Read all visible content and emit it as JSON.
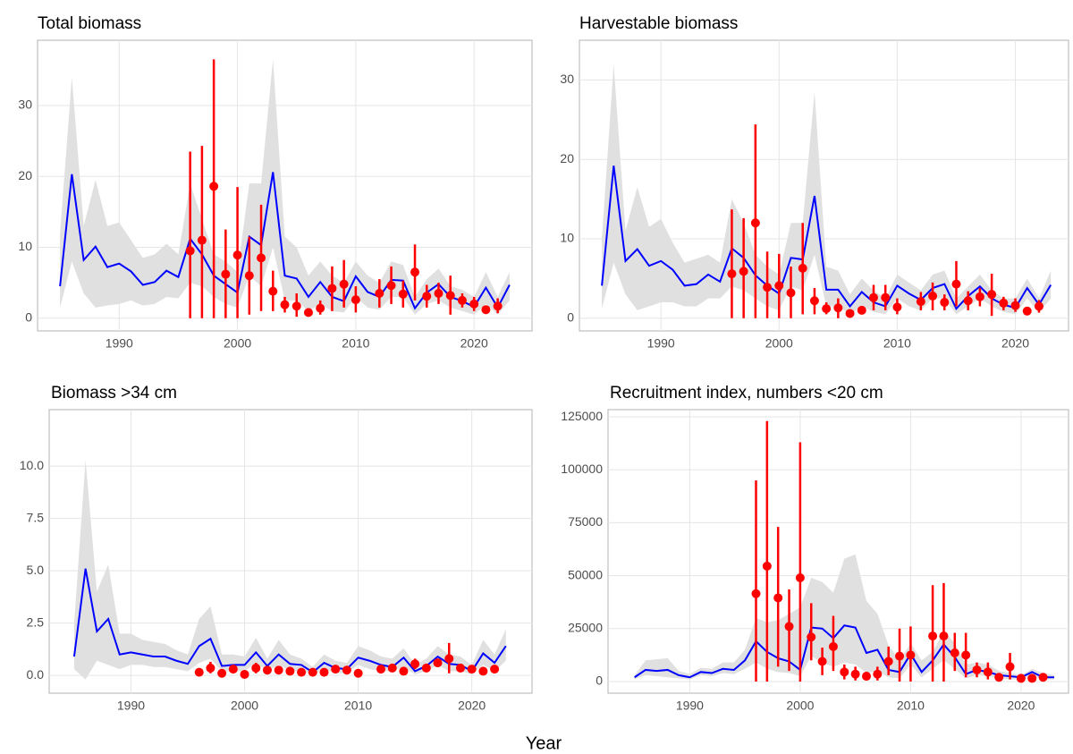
{
  "xlabel": "Year",
  "chart_data": [
    {
      "type": "line",
      "title": "Total biomass",
      "x": [
        1985,
        1986,
        1987,
        1988,
        1989,
        1990,
        1991,
        1992,
        1993,
        1994,
        1995,
        1996,
        1997,
        1998,
        1999,
        2000,
        2001,
        2002,
        2003,
        2004,
        2005,
        2006,
        2007,
        2008,
        2009,
        2010,
        2011,
        2012,
        2013,
        2014,
        2015,
        2016,
        2017,
        2018,
        2019,
        2020,
        2021,
        2022,
        2023
      ],
      "values": [
        4.5,
        20.3,
        8.2,
        10.1,
        7.2,
        7.7,
        6.6,
        4.7,
        5.1,
        6.7,
        5.8,
        11.2,
        9.0,
        6.0,
        4.8,
        3.6,
        11.5,
        10.3,
        20.6,
        6.0,
        5.6,
        3.0,
        5.1,
        3.0,
        2.4,
        5.9,
        3.7,
        3.0,
        5.4,
        5.3,
        1.4,
        3.6,
        4.8,
        3.0,
        2.4,
        1.6,
        4.3,
        1.5,
        4.7
      ],
      "lower": [
        1.5,
        8,
        3.5,
        1.5,
        1.8,
        2,
        2.5,
        1.8,
        2,
        3,
        2.8,
        5,
        4.5,
        3,
        2,
        1.5,
        6,
        4.5,
        10,
        2.5,
        2.5,
        1,
        2,
        1,
        0.8,
        3,
        1.5,
        1.2,
        3,
        3,
        0.5,
        2,
        2.5,
        1.5,
        1,
        0.5,
        2,
        0.5,
        2.5
      ],
      "upper": [
        12,
        34,
        13,
        19.5,
        13,
        13.5,
        11,
        8.5,
        9,
        10.5,
        9,
        19,
        14,
        9,
        8,
        6.5,
        19,
        19,
        36.5,
        11.5,
        10,
        6,
        8,
        6,
        5,
        8,
        6,
        5,
        8,
        7.5,
        3,
        5.5,
        7,
        4.5,
        4,
        3,
        6.5,
        3,
        6.5
      ],
      "color": "#0000ff",
      "band_color": "#e0e0e0",
      "points": {
        "x": [
          1996,
          1997,
          1998,
          1999,
          2000,
          2001,
          2002,
          2003,
          2004,
          2005,
          2006,
          2007,
          2008,
          2009,
          2010,
          2012,
          2013,
          2014,
          2015,
          2016,
          2017,
          2018,
          2019,
          2020,
          2021,
          2022
        ],
        "values": [
          9.5,
          11,
          18.6,
          6.2,
          8.9,
          6,
          8.5,
          3.8,
          1.9,
          1.7,
          0.8,
          1.4,
          4.2,
          4.8,
          2.6,
          3.5,
          4.6,
          3.4,
          6.5,
          3.1,
          3.5,
          3.2,
          2.5,
          2.0,
          1.2,
          1.7
        ],
        "lower": [
          0,
          0,
          0,
          0,
          0,
          0.5,
          1,
          1,
          0.8,
          0.2,
          0.3,
          0.5,
          1,
          1.5,
          0.8,
          1.5,
          2,
          1.5,
          2.5,
          1.5,
          2,
          0.5,
          1.5,
          1,
          0.8,
          0.7
        ],
        "upper": [
          23.5,
          24.3,
          36.5,
          12.5,
          18.5,
          11.5,
          16,
          6.7,
          3,
          3.5,
          1.3,
          2.5,
          7.3,
          8.2,
          4.5,
          5.5,
          7.3,
          5.3,
          10.4,
          4.7,
          5,
          6,
          3.5,
          3,
          1.6,
          2.8
        ],
        "color": "#ff0000"
      },
      "xlim": [
        1983.1,
        2024.9
      ],
      "ylim": [
        -1.8,
        39.2
      ],
      "xticks": [
        1990,
        2000,
        2010,
        2020
      ],
      "yticks": [
        0,
        10,
        20,
        30
      ],
      "grid": true
    },
    {
      "type": "line",
      "title": "Harvestable biomass",
      "x": [
        1985,
        1986,
        1987,
        1988,
        1989,
        1990,
        1991,
        1992,
        1993,
        1994,
        1995,
        1996,
        1997,
        1998,
        1999,
        2000,
        2001,
        2002,
        2003,
        2004,
        2005,
        2006,
        2007,
        2008,
        2009,
        2010,
        2011,
        2012,
        2013,
        2014,
        2015,
        2016,
        2017,
        2018,
        2019,
        2020,
        2021,
        2022,
        2023
      ],
      "values": [
        4.1,
        19.2,
        7.2,
        8.7,
        6.6,
        7.2,
        6.1,
        4.1,
        4.3,
        5.5,
        4.6,
        8.8,
        7.6,
        5.4,
        4.1,
        3.1,
        7.6,
        7.4,
        15.4,
        3.6,
        3.6,
        1.5,
        3.3,
        2.0,
        1.5,
        4.1,
        3.1,
        2.3,
        3.8,
        4.3,
        1.2,
        2.8,
        4.0,
        2.5,
        1.7,
        1.3,
        3.8,
        1.7,
        4.2
      ],
      "lower": [
        1.2,
        7,
        3,
        1,
        1.5,
        2,
        2,
        1.5,
        1.5,
        2.5,
        2.5,
        4,
        3.5,
        2.5,
        1.5,
        1,
        4,
        3.5,
        8,
        1.5,
        1.5,
        0.5,
        1.5,
        0.8,
        0.5,
        2.5,
        1.5,
        1,
        2.5,
        2.5,
        0.5,
        1.5,
        2.5,
        1.5,
        0.8,
        0.5,
        2.5,
        0.7,
        2.5
      ],
      "upper": [
        10,
        32,
        11,
        16.5,
        11.5,
        12.5,
        9.5,
        7,
        7.5,
        8,
        7,
        15,
        12,
        8,
        6.5,
        5.5,
        12,
        12,
        28.5,
        6.5,
        6,
        3,
        5,
        3.5,
        2.5,
        5.5,
        4.5,
        3.5,
        5.5,
        6,
        2.5,
        4,
        5.5,
        3.5,
        2.5,
        2.5,
        5,
        2.5,
        6
      ],
      "color": "#0000ff",
      "band_color": "#e0e0e0",
      "points": {
        "x": [
          1996,
          1997,
          1998,
          1999,
          2000,
          2001,
          2002,
          2003,
          2004,
          2005,
          2006,
          2007,
          2008,
          2009,
          2010,
          2012,
          2013,
          2014,
          2015,
          2016,
          2017,
          2018,
          2019,
          2020,
          2021,
          2022
        ],
        "values": [
          5.6,
          5.9,
          12,
          3.9,
          4.1,
          3.2,
          6.3,
          2.2,
          1.2,
          1.3,
          0.6,
          1.0,
          2.6,
          2.6,
          1.4,
          2.1,
          2.8,
          2.0,
          4.3,
          2.2,
          2.7,
          3.0,
          1.9,
          1.6,
          0.9,
          1.5
        ],
        "lower": [
          0,
          0,
          0,
          0,
          0,
          0,
          0.5,
          0.5,
          0.5,
          0,
          0.2,
          0.5,
          1,
          1,
          0.5,
          1,
          1,
          1,
          1.5,
          1,
          1.5,
          0.3,
          1,
          0.8,
          0.5,
          0.7
        ],
        "upper": [
          13.7,
          12.6,
          24.4,
          8.4,
          8.1,
          6.5,
          12,
          3.8,
          2,
          2.5,
          1,
          1.5,
          4.2,
          4.2,
          2.5,
          3.3,
          4.5,
          3,
          7.2,
          3.4,
          3.8,
          5.6,
          2.7,
          2.5,
          1.3,
          2.3
        ],
        "color": "#ff0000"
      },
      "xlim": [
        1983.1,
        2024.5
      ],
      "ylim": [
        -1.6,
        35
      ],
      "xticks": [
        1990,
        2000,
        2010,
        2020
      ],
      "yticks": [
        0,
        10,
        20,
        30
      ],
      "grid": true
    },
    {
      "type": "line",
      "title": "Biomass >34 cm",
      "x": [
        1985,
        1986,
        1987,
        1988,
        1989,
        1990,
        1991,
        1992,
        1993,
        1994,
        1995,
        1996,
        1997,
        1998,
        1999,
        2000,
        2001,
        2002,
        2003,
        2004,
        2005,
        2006,
        2007,
        2008,
        2009,
        2010,
        2011,
        2012,
        2013,
        2014,
        2015,
        2016,
        2017,
        2018,
        2019,
        2020,
        2021,
        2022,
        2023
      ],
      "values": [
        0.9,
        5.1,
        2.1,
        2.7,
        1.0,
        1.1,
        1.0,
        0.9,
        0.9,
        0.7,
        0.55,
        1.4,
        1.75,
        0.45,
        0.5,
        0.5,
        1.1,
        0.45,
        1.0,
        0.55,
        0.5,
        0.15,
        0.6,
        0.35,
        0.3,
        0.85,
        0.7,
        0.5,
        0.4,
        0.85,
        0.2,
        0.45,
        0.9,
        0.55,
        0.5,
        0.2,
        1.05,
        0.6,
        1.4
      ],
      "lower": [
        0.3,
        -0.2,
        0.7,
        0.5,
        0.3,
        0.5,
        0.5,
        0.4,
        0.4,
        0.3,
        0.2,
        0.6,
        0.8,
        0.2,
        0.2,
        0.2,
        0.6,
        0.2,
        0.5,
        0.2,
        0.2,
        0.05,
        0.3,
        0.1,
        0.1,
        0.5,
        0.3,
        0.2,
        0.2,
        0.4,
        0.05,
        0.2,
        0.5,
        0.2,
        0.2,
        0.05,
        0.5,
        0.2,
        0.7
      ],
      "upper": [
        2.5,
        10.3,
        4,
        5.3,
        2,
        2,
        1.7,
        1.6,
        1.5,
        1.2,
        1,
        2.7,
        3.3,
        1,
        1,
        0.9,
        1.8,
        0.8,
        1.7,
        1,
        0.8,
        0.4,
        1,
        0.7,
        0.6,
        1.4,
        1.2,
        0.9,
        0.8,
        1.3,
        0.5,
        0.8,
        1.4,
        1,
        0.9,
        0.5,
        1.7,
        1,
        2.2
      ],
      "color": "#0000ff",
      "band_color": "#e0e0e0",
      "points": {
        "x": [
          1996,
          1997,
          1998,
          1999,
          2000,
          2001,
          2002,
          2003,
          2004,
          2005,
          2006,
          2007,
          2008,
          2009,
          2010,
          2012,
          2013,
          2014,
          2015,
          2016,
          2017,
          2018,
          2019,
          2020,
          2021,
          2022
        ],
        "values": [
          0.15,
          0.35,
          0.1,
          0.3,
          0.05,
          0.35,
          0.25,
          0.25,
          0.2,
          0.15,
          0.15,
          0.15,
          0.3,
          0.25,
          0.1,
          0.3,
          0.35,
          0.2,
          0.55,
          0.35,
          0.6,
          0.8,
          0.35,
          0.3,
          0.2,
          0.3
        ],
        "lower": [
          0.05,
          0.1,
          0,
          0.1,
          0,
          0.1,
          0.1,
          0.1,
          0.1,
          0.05,
          0.05,
          0.05,
          0.15,
          0.1,
          0.05,
          0.1,
          0.2,
          0.1,
          0.3,
          0.2,
          0.4,
          0.1,
          0.2,
          0.15,
          0.1,
          0.15
        ],
        "upper": [
          0.25,
          0.65,
          0.2,
          0.5,
          0.1,
          0.6,
          0.4,
          0.4,
          0.3,
          0.25,
          0.2,
          0.2,
          0.45,
          0.4,
          0.15,
          0.5,
          0.5,
          0.3,
          0.8,
          0.5,
          0.8,
          1.55,
          0.5,
          0.45,
          0.3,
          0.45
        ],
        "color": "#ff0000"
      },
      "xlim": [
        1982.8,
        2025.3
      ],
      "ylim": [
        -0.85,
        12.7
      ],
      "xticks": [
        1990,
        2000,
        2010,
        2020
      ],
      "yticks": [
        {
          "value": 0,
          "label": "0.0"
        },
        2.5,
        {
          "value": 5,
          "label": "5.0"
        },
        7.5,
        {
          "value": 10,
          "label": "10.0"
        }
      ],
      "grid": true
    },
    {
      "type": "line",
      "title": "Recruitment index, numbers <20 cm",
      "x": [
        1985,
        1986,
        1987,
        1988,
        1989,
        1990,
        1991,
        1992,
        1993,
        1994,
        1995,
        1996,
        1997,
        1998,
        1999,
        2000,
        2001,
        2002,
        2003,
        2004,
        2005,
        2006,
        2007,
        2008,
        2009,
        2010,
        2011,
        2012,
        2013,
        2014,
        2015,
        2016,
        2017,
        2018,
        2019,
        2020,
        2021,
        2022,
        2023
      ],
      "values": [
        2000,
        5500,
        5000,
        5500,
        3000,
        2000,
        4500,
        4000,
        6000,
        5500,
        10000,
        19000,
        14000,
        11000,
        9500,
        5500,
        25500,
        25000,
        20500,
        26500,
        25500,
        13500,
        15000,
        5500,
        4500,
        13000,
        4500,
        10000,
        17500,
        11500,
        3500,
        5500,
        4500,
        3000,
        2500,
        2000,
        4500,
        2000,
        2000
      ],
      "lower": [
        1000,
        3000,
        2500,
        2000,
        1500,
        1000,
        3000,
        2500,
        4000,
        3500,
        6000,
        9000,
        6000,
        4500,
        4000,
        2500,
        12000,
        9000,
        7000,
        9000,
        8000,
        4000,
        5000,
        2000,
        1500,
        8000,
        2000,
        6000,
        10000,
        6000,
        1500,
        3000,
        2500,
        1500,
        1000,
        1000,
        2500,
        1000,
        1000
      ],
      "upper": [
        3000,
        10000,
        10500,
        11000,
        5000,
        3500,
        6500,
        6000,
        9000,
        9000,
        15000,
        30000,
        28000,
        29000,
        32000,
        35000,
        49000,
        47000,
        42000,
        58000,
        60000,
        38000,
        32000,
        17000,
        10000,
        18000,
        10000,
        14000,
        24000,
        18000,
        8000,
        9000,
        8000,
        5000,
        4000,
        3000,
        6000,
        4000,
        3000
      ],
      "color": "#0000ff",
      "band_color": "#e0e0e0",
      "points": {
        "x": [
          1996,
          1997,
          1998,
          1999,
          2000,
          2001,
          2002,
          2003,
          2004,
          2005,
          2006,
          2007,
          2008,
          2009,
          2010,
          2012,
          2013,
          2014,
          2015,
          2016,
          2017,
          2018,
          2019,
          2020,
          2021,
          2022
        ],
        "values": [
          41500,
          54500,
          39500,
          26000,
          49000,
          21000,
          9500,
          16500,
          4500,
          3500,
          2500,
          3500,
          9500,
          12000,
          12500,
          21500,
          21500,
          13500,
          12500,
          5500,
          4500,
          2000,
          7000,
          1500,
          1500,
          2000
        ],
        "lower": [
          0,
          0,
          7000,
          5000,
          0,
          10000,
          3000,
          5000,
          1000,
          500,
          500,
          500,
          3000,
          0,
          0,
          0,
          0,
          5000,
          2000,
          2000,
          1000,
          1000,
          1000,
          500,
          500,
          500
        ],
        "upper": [
          95000,
          123000,
          73000,
          43500,
          113000,
          37000,
          16000,
          31000,
          8000,
          7000,
          4500,
          7000,
          16500,
          25000,
          26000,
          45500,
          46500,
          23000,
          23000,
          9000,
          9000,
          3000,
          13500,
          2500,
          2500,
          3500
        ],
        "color": "#ff0000"
      },
      "xlim": [
        1982.6,
        2024.3
      ],
      "ylim": [
        -5500,
        128400
      ],
      "xticks": [
        1990,
        2000,
        2010,
        2020
      ],
      "yticks": [
        0,
        25000,
        50000,
        75000,
        100000,
        125000
      ],
      "grid": true
    }
  ]
}
